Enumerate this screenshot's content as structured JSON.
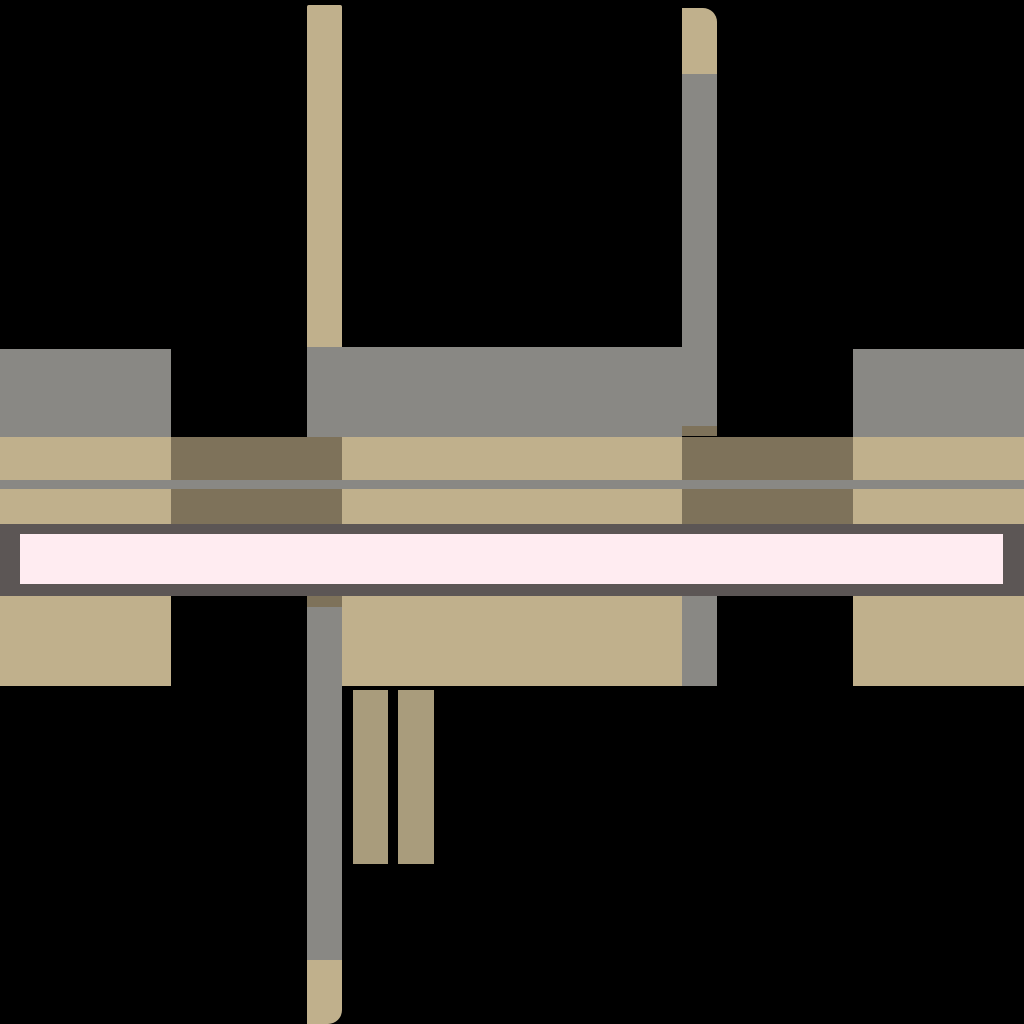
{
  "scene": {
    "description_name": "abstract-tan-gray-structure",
    "colors": {
      "background": "#000000",
      "tan": "#c0b08c",
      "gray": "#898884",
      "dark_tan": "#7e725a",
      "pale_tan": "#a99c7c",
      "bar_frame": "#5c5655",
      "bar_fill": "#ffecf1"
    },
    "progress_bar": {
      "fill_fraction": 1.0
    }
  }
}
